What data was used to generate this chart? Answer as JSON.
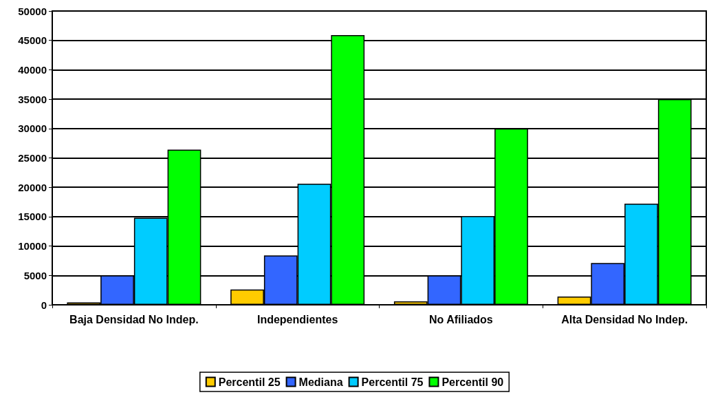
{
  "chart_data": {
    "type": "bar",
    "categories": [
      "Baja Densidad No Indep.",
      "Independientes",
      "No Afiliados",
      "Alta Densidad No Indep."
    ],
    "series": [
      {
        "name": "Percentil 25",
        "color": "#ffcc00",
        "values": [
          400,
          2600,
          600,
          1400
        ]
      },
      {
        "name": "Mediana",
        "color": "#3366ff",
        "values": [
          5000,
          8400,
          5000,
          7100
        ]
      },
      {
        "name": "Percentil 75",
        "color": "#00ccff",
        "values": [
          14800,
          20600,
          15100,
          17200
        ]
      },
      {
        "name": "Percentil 90",
        "color": "#00ff00",
        "values": [
          26400,
          45900,
          30000,
          35000
        ]
      }
    ],
    "ylim": [
      0,
      50000
    ],
    "yticks": [
      0,
      5000,
      10000,
      15000,
      20000,
      25000,
      30000,
      35000,
      40000,
      45000,
      50000
    ],
    "grid": "y",
    "legend": "bottom"
  }
}
